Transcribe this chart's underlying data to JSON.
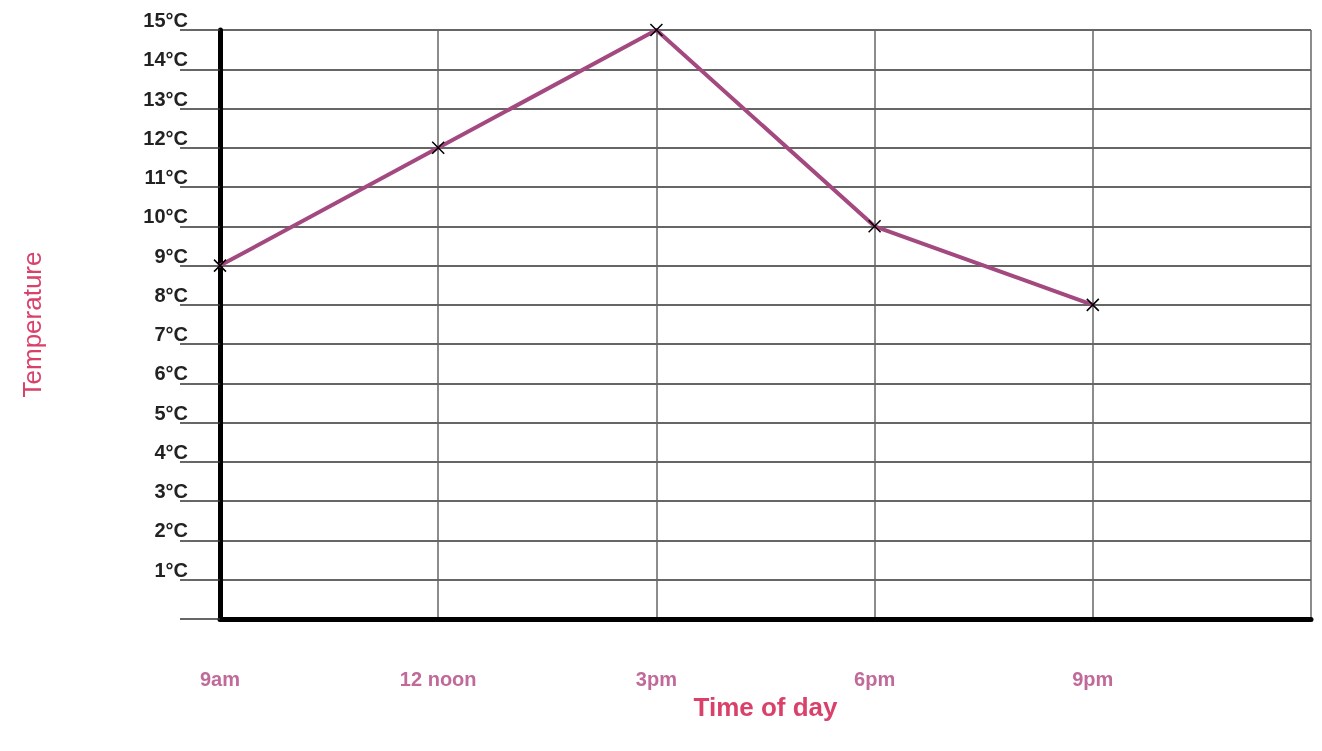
{
  "chart_data": {
    "type": "line",
    "xlabel": "Time of day",
    "ylabel": "Temperature",
    "categories": [
      "9am",
      "12 noon",
      "3pm",
      "6pm",
      "9pm",
      null
    ],
    "series": [
      {
        "color": "#a3497f",
        "values": [
          9,
          12,
          15,
          10,
          8,
          null
        ]
      }
    ],
    "ylim": [
      0,
      15
    ],
    "yticks": [
      {
        "value": 0,
        "label": null
      },
      {
        "value": 1,
        "label": "1°C"
      },
      {
        "value": 2,
        "label": "2°C"
      },
      {
        "value": 3,
        "label": "3°C"
      },
      {
        "value": 4,
        "label": "4°C"
      },
      {
        "value": 5,
        "label": "5°C"
      },
      {
        "value": 6,
        "label": "6°C"
      },
      {
        "value": 7,
        "label": "7°C"
      },
      {
        "value": 8,
        "label": "8°C"
      },
      {
        "value": 9,
        "label": "9°C"
      },
      {
        "value": 10,
        "label": "10°C"
      },
      {
        "value": 11,
        "label": "11°C"
      },
      {
        "value": 12,
        "label": "12°C"
      },
      {
        "value": 13,
        "label": "13°C"
      },
      {
        "value": 14,
        "label": "14°C"
      },
      {
        "value": 15,
        "label": "15°C"
      }
    ],
    "grid": true,
    "marker": "cross",
    "line_style": "solid"
  }
}
